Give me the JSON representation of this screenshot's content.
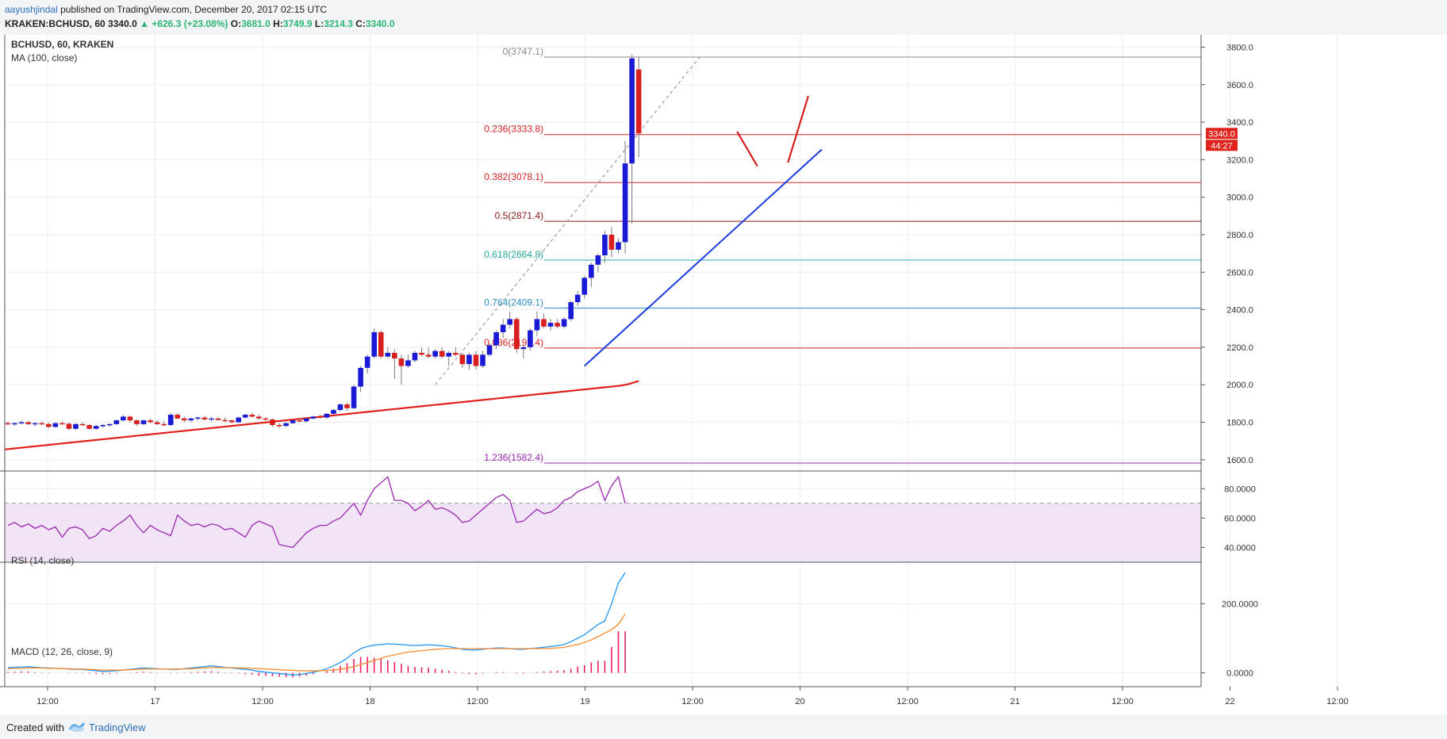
{
  "header": {
    "author": "aayushjindal",
    "published_text": "published on TradingView.com, December 20, 2017 02:15 UTC",
    "symbol": "KRAKEN:BCHUSD,",
    "interval": "60",
    "last": "3340.0",
    "up_arrow": "▲",
    "change": "+626.3 (+23.08%)",
    "o_label": "O:",
    "o_val": "3681.0",
    "h_label": "H:",
    "h_val": "3749.9",
    "l_label": "L:",
    "l_val": "3214.3",
    "c_label": "C:",
    "c_val": "3340.0"
  },
  "footer": {
    "created_with": "Created with",
    "brand": "TradingView"
  },
  "colors": {
    "up": "#1a1ad6",
    "down": "#d81e1e",
    "ma": "#e0201b",
    "trendline": "#1b3de0",
    "fib_red": "#d82424",
    "fib_green": "#26a69a",
    "fib_blue": "#2b8cc4",
    "fib_purple": "#9c27b0",
    "rsi": "#9c27b0",
    "macd": "#2196f3",
    "signal": "#ff8a2b",
    "hist": "#e91e63"
  },
  "chart_data": [
    {
      "type": "candlestick",
      "title": "BCHUSD, 60, KRAKEN",
      "indicator": "MA (100, close)",
      "ylim": [
        1540,
        3840
      ],
      "y_ticks": [
        "3800.0",
        "3600.0",
        "3400.0",
        "3200.0",
        "3000.0",
        "2800.0",
        "2600.0",
        "2400.0",
        "2200.0",
        "2000.0",
        "1800.0",
        "1600.0"
      ],
      "x_ticks": [
        "12:00",
        "17",
        "12:00",
        "18",
        "12:00",
        "19",
        "12:00",
        "20",
        "12:00",
        "21",
        "12:00",
        "22",
        "12:00"
      ],
      "price_label": "3340.0",
      "countdown_label": "44:27",
      "candles": [
        [
          1795,
          1805,
          1785,
          1790
        ],
        [
          1790,
          1800,
          1780,
          1795
        ],
        [
          1795,
          1810,
          1788,
          1800
        ],
        [
          1800,
          1808,
          1785,
          1790
        ],
        [
          1790,
          1800,
          1778,
          1795
        ],
        [
          1795,
          1805,
          1785,
          1790
        ],
        [
          1790,
          1798,
          1770,
          1775
        ],
        [
          1775,
          1800,
          1770,
          1795
        ],
        [
          1795,
          1805,
          1788,
          1792
        ],
        [
          1792,
          1800,
          1760,
          1765
        ],
        [
          1765,
          1795,
          1760,
          1790
        ],
        [
          1790,
          1800,
          1780,
          1785
        ],
        [
          1785,
          1790,
          1760,
          1765
        ],
        [
          1765,
          1785,
          1760,
          1780
        ],
        [
          1780,
          1790,
          1770,
          1785
        ],
        [
          1785,
          1795,
          1775,
          1790
        ],
        [
          1790,
          1815,
          1785,
          1810
        ],
        [
          1810,
          1840,
          1805,
          1830
        ],
        [
          1830,
          1835,
          1800,
          1810
        ],
        [
          1810,
          1815,
          1780,
          1790
        ],
        [
          1790,
          1815,
          1785,
          1810
        ],
        [
          1810,
          1820,
          1795,
          1800
        ],
        [
          1800,
          1810,
          1785,
          1790
        ],
        [
          1790,
          1805,
          1780,
          1785
        ],
        [
          1785,
          1850,
          1780,
          1840
        ],
        [
          1840,
          1850,
          1815,
          1820
        ],
        [
          1820,
          1830,
          1800,
          1810
        ],
        [
          1810,
          1825,
          1800,
          1820
        ],
        [
          1820,
          1830,
          1810,
          1825
        ],
        [
          1825,
          1835,
          1810,
          1815
        ],
        [
          1815,
          1830,
          1805,
          1820
        ],
        [
          1820,
          1828,
          1808,
          1812
        ],
        [
          1812,
          1825,
          1800,
          1810
        ],
        [
          1810,
          1815,
          1795,
          1800
        ],
        [
          1800,
          1830,
          1795,
          1825
        ],
        [
          1825,
          1845,
          1820,
          1840
        ],
        [
          1840,
          1850,
          1825,
          1830
        ],
        [
          1830,
          1840,
          1815,
          1820
        ],
        [
          1820,
          1828,
          1808,
          1815
        ],
        [
          1815,
          1820,
          1775,
          1785
        ],
        [
          1785,
          1795,
          1770,
          1780
        ],
        [
          1780,
          1800,
          1775,
          1795
        ],
        [
          1795,
          1815,
          1790,
          1810
        ],
        [
          1810,
          1820,
          1800,
          1805
        ],
        [
          1805,
          1825,
          1800,
          1820
        ],
        [
          1820,
          1835,
          1815,
          1830
        ],
        [
          1830,
          1840,
          1820,
          1825
        ],
        [
          1825,
          1850,
          1820,
          1845
        ],
        [
          1845,
          1870,
          1840,
          1865
        ],
        [
          1865,
          1900,
          1860,
          1895
        ],
        [
          1895,
          1905,
          1860,
          1875
        ],
        [
          1875,
          2000,
          1870,
          1990
        ],
        [
          1990,
          2100,
          1960,
          2090
        ],
        [
          2090,
          2160,
          2060,
          2150
        ],
        [
          2150,
          2300,
          2140,
          2280
        ],
        [
          2280,
          2290,
          2140,
          2150
        ],
        [
          2150,
          2200,
          2140,
          2170
        ],
        [
          2170,
          2190,
          2030,
          2140
        ],
        [
          2140,
          2160,
          2000,
          2100
        ],
        [
          2100,
          2160,
          2090,
          2130
        ],
        [
          2130,
          2180,
          2120,
          2170
        ],
        [
          2170,
          2200,
          2150,
          2160
        ],
        [
          2160,
          2200,
          2140,
          2150
        ],
        [
          2150,
          2190,
          2140,
          2180
        ],
        [
          2180,
          2200,
          2140,
          2150
        ],
        [
          2150,
          2180,
          2100,
          2170
        ],
        [
          2170,
          2200,
          2150,
          2160
        ],
        [
          2160,
          2170,
          2090,
          2110
        ],
        [
          2110,
          2170,
          2080,
          2160
        ],
        [
          2160,
          2180,
          2080,
          2100
        ],
        [
          2100,
          2180,
          2090,
          2160
        ],
        [
          2160,
          2220,
          2150,
          2210
        ],
        [
          2210,
          2290,
          2190,
          2280
        ],
        [
          2280,
          2350,
          2250,
          2320
        ],
        [
          2320,
          2390,
          2300,
          2350
        ],
        [
          2350,
          2360,
          2170,
          2190
        ],
        [
          2190,
          2210,
          2140,
          2200
        ],
        [
          2200,
          2300,
          2180,
          2290
        ],
        [
          2290,
          2390,
          2260,
          2350
        ],
        [
          2350,
          2380,
          2300,
          2310
        ],
        [
          2310,
          2350,
          2290,
          2330
        ],
        [
          2330,
          2350,
          2300,
          2310
        ],
        [
          2310,
          2360,
          2300,
          2350
        ],
        [
          2350,
          2450,
          2340,
          2440
        ],
        [
          2440,
          2500,
          2420,
          2480
        ],
        [
          2480,
          2580,
          2460,
          2570
        ],
        [
          2570,
          2650,
          2520,
          2640
        ],
        [
          2640,
          2700,
          2600,
          2690
        ],
        [
          2690,
          2820,
          2650,
          2800
        ],
        [
          2800,
          2840,
          2680,
          2720
        ],
        [
          2720,
          2780,
          2700,
          2760
        ],
        [
          2760,
          3300,
          2700,
          3180
        ],
        [
          3180,
          3760,
          2860,
          3740
        ],
        [
          3681,
          3749.9,
          3214.3,
          3340
        ]
      ],
      "ma100": [
        1655,
        1660,
        1665,
        1670,
        1675,
        1680,
        1685,
        1690,
        1695,
        1700,
        1705,
        1710,
        1715,
        1720,
        1725,
        1730,
        1735,
        1740,
        1745,
        1750,
        1755,
        1760,
        1765,
        1770,
        1775,
        1780,
        1785,
        1790,
        1795,
        1800,
        1805,
        1810,
        1815,
        1820,
        1825,
        1830,
        1835,
        1840,
        1845,
        1850,
        1855,
        1860,
        1865,
        1870,
        1875,
        1880,
        1885,
        1890,
        1895,
        1900,
        1905,
        1910,
        1915,
        1920,
        1925,
        1930,
        1935,
        1940,
        1945,
        1950,
        1955,
        1960,
        1965,
        1970,
        1975,
        1980,
        1985,
        1990,
        1995,
        2005,
        2020
      ],
      "fib_levels": [
        {
          "ratio": "0",
          "value": "3747.1",
          "label": "0(3747.1)",
          "price": 3747.1,
          "color": "#888888"
        },
        {
          "ratio": "0.236",
          "value": "3333.8",
          "label": "0.236(3333.8)",
          "price": 3333.8,
          "color": "#d82424"
        },
        {
          "ratio": "0.382",
          "value": "3078.1",
          "label": "0.382(3078.1)",
          "price": 3078.1,
          "color": "#d82424"
        },
        {
          "ratio": "0.5",
          "value": "2871.4",
          "label": "0.5(2871.4)",
          "price": 2871.4,
          "color": "#8b1a1a"
        },
        {
          "ratio": "0.618",
          "value": "2664.8",
          "label": "0.618(2664.8)",
          "price": 2664.8,
          "color": "#26a69a"
        },
        {
          "ratio": "0.764",
          "value": "2409.1",
          "label": "0.764(2409.1)",
          "price": 2409.1,
          "color": "#2b8cc4"
        },
        {
          "ratio": "0.886",
          "value": "2195.4",
          "label": "0.886(2195.4)",
          "price": 2195.4,
          "color": "#d82424"
        },
        {
          "ratio": "1.236",
          "value": "1582.4",
          "label": "1.236(1582.4)",
          "price": 1582.4,
          "color": "#9c27b0"
        }
      ],
      "trendline": {
        "from": {
          "index": 85,
          "price": 2100
        },
        "to": {
          "index": 120,
          "price": 3255
        }
      }
    },
    {
      "type": "line",
      "title": "RSI (14, close)",
      "ylim": [
        30,
        92
      ],
      "y_ticks": [
        "80.0000",
        "60.0000",
        "40.0000"
      ],
      "overbought": 70,
      "oversold": 30,
      "values": [
        55,
        57,
        54,
        56,
        53,
        55,
        52,
        54,
        47,
        53,
        54,
        52,
        46,
        48,
        53,
        51,
        55,
        58,
        62,
        55,
        50,
        55,
        52,
        50,
        48,
        62,
        58,
        55,
        56,
        54,
        56,
        55,
        52,
        53,
        50,
        47,
        55,
        58,
        56,
        54,
        42,
        41,
        40,
        45,
        50,
        53,
        55,
        55,
        58,
        60,
        65,
        70,
        62,
        72,
        80,
        84,
        88,
        72,
        72,
        70,
        65,
        68,
        72,
        66,
        67,
        65,
        62,
        57,
        58,
        62,
        66,
        70,
        74,
        76,
        72,
        57,
        58,
        62,
        66,
        63,
        64,
        67,
        72,
        74,
        78,
        80,
        82,
        85,
        72,
        82,
        88,
        70
      ]
    },
    {
      "type": "line",
      "title": "MACD (12, 26, close, 9)",
      "ylim": [
        -40,
        320
      ],
      "y_ticks": [
        "200.0000",
        "0.0000"
      ],
      "macd": [
        15,
        16,
        17,
        18,
        16,
        15,
        14,
        13,
        12,
        11,
        10,
        10,
        8,
        6,
        4,
        5,
        6,
        8,
        10,
        12,
        14,
        13,
        12,
        11,
        10,
        10,
        12,
        14,
        16,
        18,
        20,
        18,
        16,
        14,
        12,
        10,
        8,
        4,
        2,
        0,
        -2,
        -4,
        -6,
        -5,
        -2,
        2,
        6,
        12,
        20,
        30,
        42,
        58,
        70,
        76,
        80,
        82,
        84,
        83,
        82,
        80,
        79,
        80,
        81,
        80,
        78,
        76,
        72,
        68,
        66,
        66,
        68,
        70,
        72,
        72,
        70,
        68,
        68,
        70,
        72,
        74,
        76,
        78,
        82,
        90,
        100,
        110,
        125,
        140,
        150,
        200,
        260,
        290
      ],
      "signal": [
        12,
        13,
        13,
        14,
        14,
        14,
        13,
        13,
        12,
        12,
        11,
        11,
        10,
        9,
        8,
        8,
        8,
        8,
        9,
        10,
        11,
        11,
        11,
        11,
        11,
        11,
        11,
        12,
        13,
        14,
        15,
        15,
        15,
        15,
        14,
        14,
        13,
        12,
        11,
        10,
        9,
        8,
        7,
        6,
        6,
        6,
        6,
        7,
        8,
        10,
        14,
        18,
        24,
        30,
        36,
        42,
        48,
        52,
        56,
        60,
        62,
        64,
        66,
        68,
        69,
        70,
        70,
        70,
        70,
        70,
        70,
        70,
        70,
        70,
        70,
        70,
        70,
        70,
        70,
        70,
        71,
        72,
        74,
        78,
        82,
        88,
        95,
        105,
        115,
        125,
        140,
        170
      ],
      "hist": [
        3,
        3,
        4,
        4,
        2,
        1,
        1,
        0,
        0,
        -1,
        -1,
        -1,
        -2,
        -3,
        -4,
        -3,
        -2,
        0,
        1,
        2,
        3,
        2,
        1,
        0,
        -1,
        -1,
        1,
        2,
        3,
        4,
        5,
        3,
        1,
        -1,
        -2,
        -4,
        -5,
        -8,
        -9,
        -10,
        -11,
        -12,
        -13,
        -11,
        -8,
        -4,
        0,
        5,
        12,
        20,
        28,
        40,
        46,
        46,
        44,
        40,
        36,
        31,
        26,
        20,
        17,
        16,
        15,
        12,
        9,
        6,
        2,
        -2,
        -4,
        -4,
        -2,
        0,
        2,
        2,
        0,
        -2,
        -2,
        0,
        2,
        4,
        5,
        6,
        8,
        12,
        18,
        22,
        30,
        35,
        35,
        75,
        120,
        120
      ]
    }
  ]
}
